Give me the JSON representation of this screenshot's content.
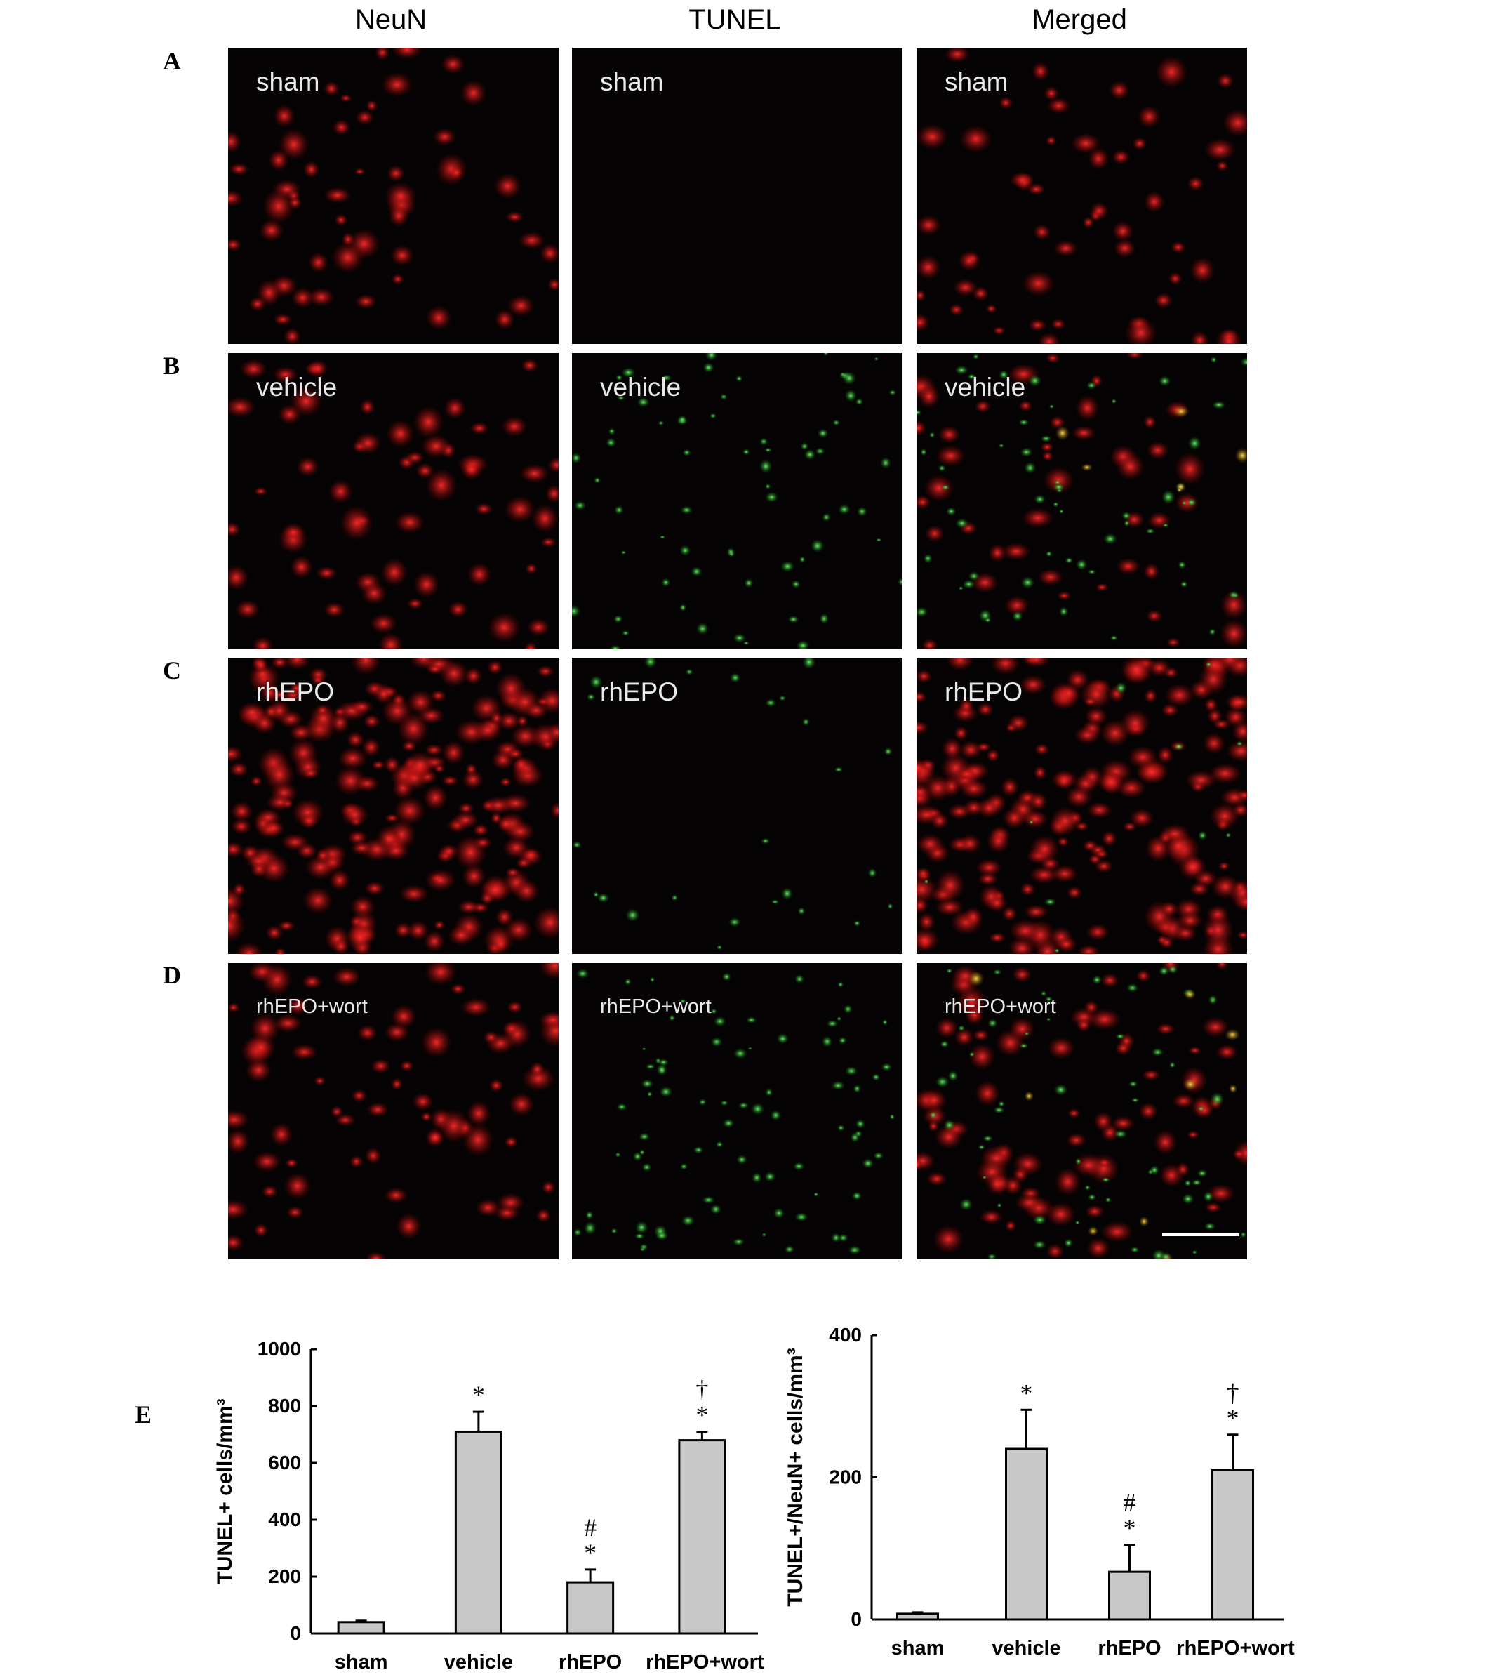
{
  "columns": [
    "NeuN",
    "TUNEL",
    "Merged"
  ],
  "rows": [
    {
      "letter": "A",
      "condition": "sham"
    },
    {
      "letter": "B",
      "condition": "vehicle"
    },
    {
      "letter": "C",
      "condition": "rhEPO"
    },
    {
      "letter": "D",
      "condition": "rhEPO+wort"
    }
  ],
  "panel_label_E": "E",
  "chart_data": [
    {
      "type": "bar",
      "ylabel": "TUNEL+ cells/mm³",
      "categories": [
        "sham",
        "vehicle",
        "rhEPO",
        "rhEPO+wort"
      ],
      "values": [
        40,
        710,
        180,
        680
      ],
      "errors": [
        5,
        70,
        45,
        30
      ],
      "annotations": [
        "",
        "*",
        "*#",
        "*†"
      ],
      "ylim": [
        0,
        1000
      ],
      "yticks": [
        "0",
        "200",
        "400",
        "600",
        "800",
        "1000"
      ],
      "bar_color": "#c8c8c8"
    },
    {
      "type": "bar",
      "ylabel": "TUNEL+/NeuN+ cells/mm³",
      "categories": [
        "sham",
        "vehicle",
        "rhEPO",
        "rhEPO+wort"
      ],
      "values": [
        8,
        240,
        67,
        210
      ],
      "errors": [
        2,
        55,
        38,
        50
      ],
      "annotations": [
        "",
        "*",
        "*#",
        "*†"
      ],
      "ylim": [
        0,
        400
      ],
      "yticks": [
        "0",
        "200",
        "400"
      ],
      "bar_color": "#c8c8c8"
    }
  ]
}
